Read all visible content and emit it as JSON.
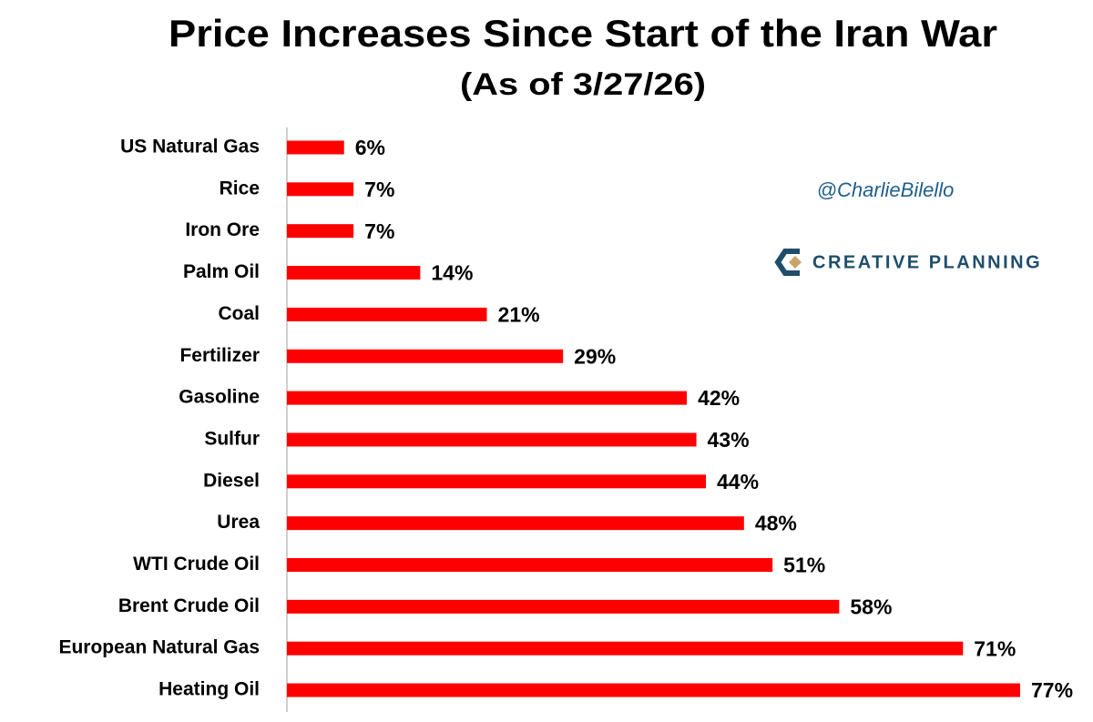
{
  "chart_data": {
    "type": "hbar",
    "title": "Price Increases Since Start of the Iran War",
    "subtitle": "(As of 3/27/26)",
    "categories": [
      "US Natural Gas",
      "Rice",
      "Iron Ore",
      "Palm Oil",
      "Coal",
      "Fertilizer",
      "Gasoline",
      "Sulfur",
      "Diesel",
      "Urea",
      "WTI Crude Oil",
      "Brent Crude Oil",
      "European Natural Gas",
      "Heating Oil"
    ],
    "values": [
      6,
      7,
      7,
      14,
      21,
      29,
      42,
      43,
      44,
      48,
      51,
      58,
      71,
      77
    ],
    "value_labels": [
      "6%",
      "7%",
      "7%",
      "14%",
      "21%",
      "29%",
      "42%",
      "43%",
      "44%",
      "48%",
      "51%",
      "58%",
      "71%",
      "77%"
    ],
    "color": "#ff0000",
    "annotations": [
      "@CharlieBilello",
      "CREATIVE PLANNING"
    ]
  }
}
